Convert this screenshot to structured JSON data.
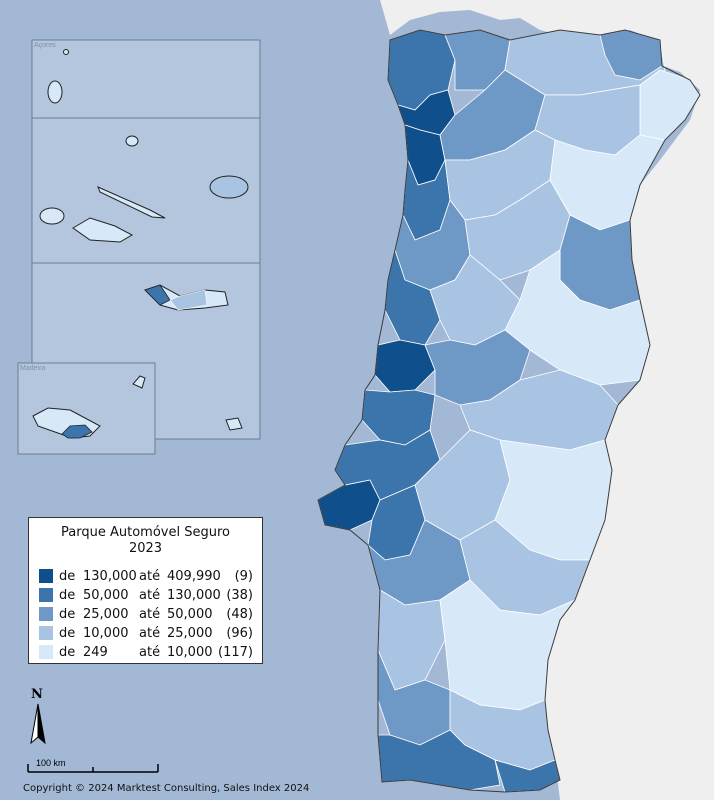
{
  "map": {
    "colors": {
      "sea": "#a3b8d4",
      "land_outside": "#efefef",
      "border": "#ffffff",
      "outline": "#3a3a3a",
      "inset_panel": "#b3c6de",
      "class_1": "#0f4f8b",
      "class_2": "#3c74ac",
      "class_3": "#6e98c6",
      "class_4": "#a9c4e2",
      "class_5": "#d7e9f8"
    },
    "insets": {
      "azores": "Açores",
      "madeira": "Madeira"
    }
  },
  "legend": {
    "title": "Parque Automóvel Seguro",
    "subtitle": "2023",
    "items": [
      {
        "de": "de",
        "from": "130,000",
        "ate": "até",
        "to": "409,990",
        "count": "(9)",
        "color": "#0f4f8b"
      },
      {
        "de": "de",
        "from": "50,000",
        "ate": "até",
        "to": "130,000",
        "count": "(38)",
        "color": "#3c74ac"
      },
      {
        "de": "de",
        "from": "25,000",
        "ate": "até",
        "to": "50,000",
        "count": "(48)",
        "color": "#6e98c6"
      },
      {
        "de": "de",
        "from": "10,000",
        "ate": "até",
        "to": "25,000",
        "count": "(96)",
        "color": "#a9c4e2"
      },
      {
        "de": "de",
        "from": "249",
        "ate": "até",
        "to": "10,000",
        "count": "(117)",
        "color": "#d7e9f8"
      }
    ]
  },
  "north_arrow": {
    "label": "N"
  },
  "scale": {
    "label": "100 km"
  },
  "copyright": "Copyright © 2024 Marktest Consulting, Sales Index 2024"
}
